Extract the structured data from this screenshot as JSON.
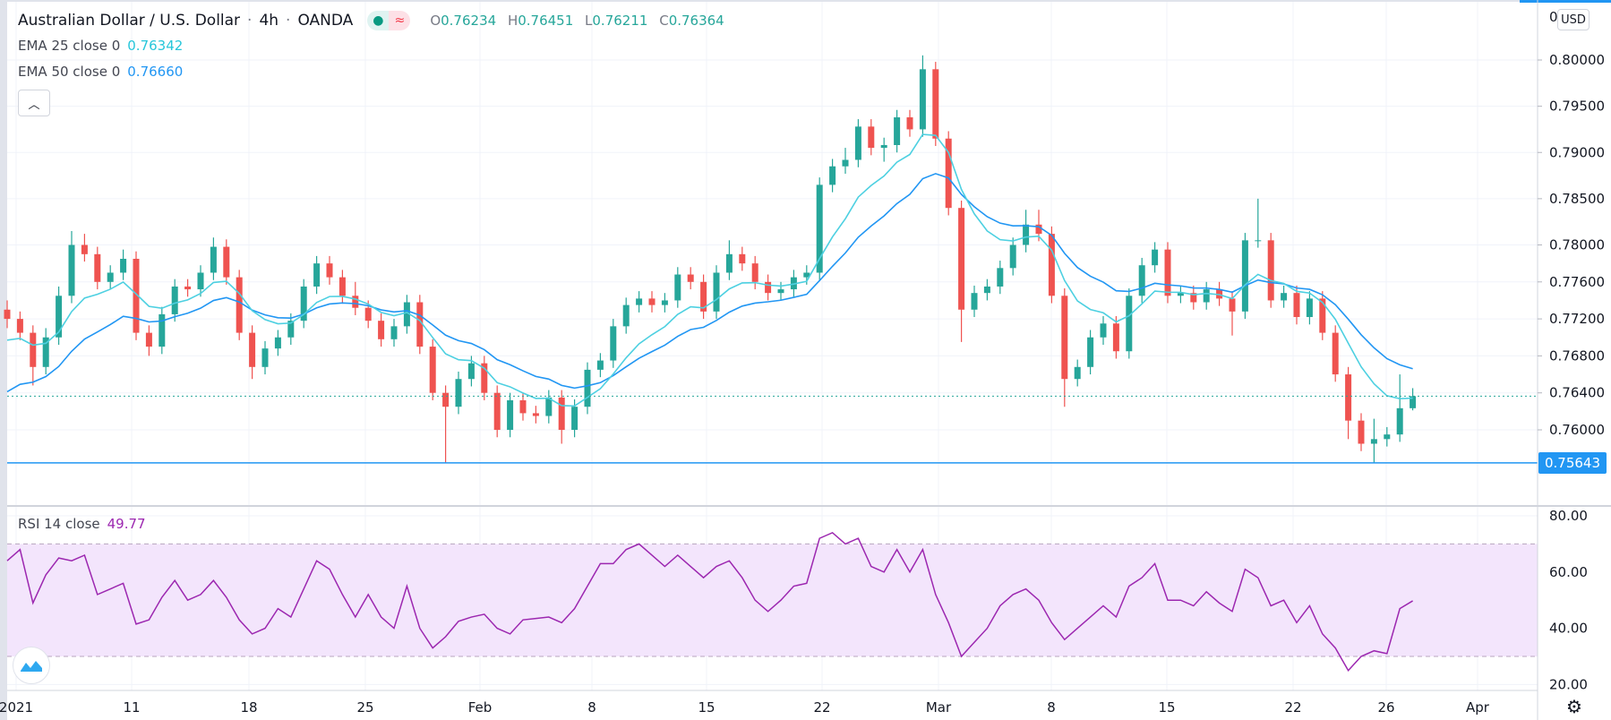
{
  "header": {
    "symbol": "Australian Dollar / U.S. Dollar",
    "interval": "4h",
    "exchange": "OANDA",
    "sep": "·",
    "status_icons": [
      "market-open-dot-icon",
      "delayed-data-icon"
    ],
    "ohlc": {
      "o_label": "O",
      "o": "0.76234",
      "h_label": "H",
      "h": "0.76451",
      "l_label": "L",
      "l": "0.76211",
      "c_label": "C",
      "c": "0.76364"
    }
  },
  "indicators": {
    "ema25": {
      "label": "EMA 25 close 0",
      "value": "0.76342",
      "color": "#4dd0e1"
    },
    "ema50": {
      "label": "EMA 50 close 0",
      "value": "0.76660",
      "color": "#2196f3"
    },
    "rsi": {
      "label": "RSI 14 close",
      "value": "49.77",
      "color": "#9c27b0"
    }
  },
  "price_axis": {
    "currency": "USD",
    "top_partial": "0",
    "horizontal_line_label": "0.75643"
  },
  "colors": {
    "up": "#26a69a",
    "down": "#ef5350",
    "hline": "#2196f3",
    "rsi_band": "#f3e5fc"
  },
  "chart_data": [
    {
      "type": "candlestick",
      "title": "Australian Dollar / U.S. Dollar · 4h · OANDA",
      "ylim": [
        0.7526,
        0.8065
      ],
      "y_ticks": [
        "0.80000",
        "0.79500",
        "0.79000",
        "0.78500",
        "0.78000",
        "0.77600",
        "0.77200",
        "0.76800",
        "0.76400",
        "0.76000"
      ],
      "x_ticks": [
        "2021",
        "11",
        "18",
        "25",
        "Feb",
        "8",
        "15",
        "22",
        "Mar",
        "8",
        "15",
        "22",
        "26",
        "Apr"
      ],
      "horizontal_line": 0.75643,
      "last_price": 0.76364,
      "ohlc": [
        [
          0.773,
          0.774,
          0.771,
          0.772
        ],
        [
          0.772,
          0.7728,
          0.7697,
          0.7705
        ],
        [
          0.7705,
          0.7713,
          0.7648,
          0.7668
        ],
        [
          0.7668,
          0.771,
          0.766,
          0.77
        ],
        [
          0.77,
          0.7755,
          0.7692,
          0.7745
        ],
        [
          0.7745,
          0.7815,
          0.7737,
          0.78
        ],
        [
          0.78,
          0.7812,
          0.7782,
          0.779
        ],
        [
          0.779,
          0.7798,
          0.7752,
          0.776
        ],
        [
          0.776,
          0.7778,
          0.7752,
          0.777
        ],
        [
          0.777,
          0.7795,
          0.7762,
          0.7785
        ],
        [
          0.7785,
          0.7793,
          0.7697,
          0.7705
        ],
        [
          0.7705,
          0.7713,
          0.768,
          0.769
        ],
        [
          0.769,
          0.7733,
          0.7682,
          0.7725
        ],
        [
          0.7725,
          0.7763,
          0.7717,
          0.7755
        ],
        [
          0.7755,
          0.7763,
          0.7744,
          0.7752
        ],
        [
          0.7752,
          0.7778,
          0.7744,
          0.777
        ],
        [
          0.777,
          0.7808,
          0.7762,
          0.7798
        ],
        [
          0.7798,
          0.7806,
          0.7757,
          0.7765
        ],
        [
          0.7765,
          0.7773,
          0.7697,
          0.7705
        ],
        [
          0.7705,
          0.7713,
          0.7655,
          0.7668
        ],
        [
          0.7668,
          0.7696,
          0.766,
          0.7688
        ],
        [
          0.7688,
          0.7708,
          0.768,
          0.77
        ],
        [
          0.77,
          0.7726,
          0.7692,
          0.7718
        ],
        [
          0.7718,
          0.7763,
          0.771,
          0.7755
        ],
        [
          0.7755,
          0.7788,
          0.7747,
          0.778
        ],
        [
          0.778,
          0.7788,
          0.7757,
          0.7765
        ],
        [
          0.7765,
          0.7773,
          0.7737,
          0.7745
        ],
        [
          0.7745,
          0.776,
          0.7724,
          0.7732
        ],
        [
          0.7732,
          0.774,
          0.771,
          0.7718
        ],
        [
          0.7718,
          0.7726,
          0.769,
          0.7698
        ],
        [
          0.7698,
          0.772,
          0.769,
          0.7712
        ],
        [
          0.7712,
          0.7746,
          0.7704,
          0.7738
        ],
        [
          0.7738,
          0.7746,
          0.7682,
          0.769
        ],
        [
          0.769,
          0.7698,
          0.7632,
          0.764
        ],
        [
          0.764,
          0.7648,
          0.75643,
          0.7625
        ],
        [
          0.7625,
          0.7663,
          0.7617,
          0.7655
        ],
        [
          0.7655,
          0.768,
          0.7647,
          0.7672
        ],
        [
          0.7672,
          0.768,
          0.7632,
          0.764
        ],
        [
          0.764,
          0.7648,
          0.7592,
          0.76
        ],
        [
          0.76,
          0.764,
          0.7592,
          0.7632
        ],
        [
          0.7632,
          0.764,
          0.761,
          0.7618
        ],
        [
          0.7618,
          0.7626,
          0.7607,
          0.7615
        ],
        [
          0.7615,
          0.7643,
          0.7607,
          0.7635
        ],
        [
          0.7635,
          0.7643,
          0.7585,
          0.76
        ],
        [
          0.76,
          0.7633,
          0.7592,
          0.7625
        ],
        [
          0.7625,
          0.7673,
          0.7617,
          0.7665
        ],
        [
          0.7665,
          0.7683,
          0.7657,
          0.7675
        ],
        [
          0.7675,
          0.772,
          0.7667,
          0.7712
        ],
        [
          0.7712,
          0.7743,
          0.7704,
          0.7735
        ],
        [
          0.7735,
          0.775,
          0.7727,
          0.7742
        ],
        [
          0.7742,
          0.775,
          0.7727,
          0.7735
        ],
        [
          0.7735,
          0.7748,
          0.7727,
          0.774
        ],
        [
          0.774,
          0.7776,
          0.7732,
          0.7768
        ],
        [
          0.7768,
          0.7776,
          0.7752,
          0.776
        ],
        [
          0.776,
          0.7768,
          0.772,
          0.7728
        ],
        [
          0.7728,
          0.7778,
          0.772,
          0.777
        ],
        [
          0.777,
          0.7805,
          0.7762,
          0.779
        ],
        [
          0.779,
          0.7798,
          0.7772,
          0.778
        ],
        [
          0.778,
          0.7788,
          0.7752,
          0.776
        ],
        [
          0.776,
          0.7768,
          0.774,
          0.7748
        ],
        [
          0.7748,
          0.776,
          0.774,
          0.7752
        ],
        [
          0.7752,
          0.7773,
          0.7744,
          0.7765
        ],
        [
          0.7765,
          0.7778,
          0.7757,
          0.777
        ],
        [
          0.777,
          0.7873,
          0.7762,
          0.7865
        ],
        [
          0.7865,
          0.7893,
          0.7857,
          0.7885
        ],
        [
          0.7885,
          0.7905,
          0.7877,
          0.7892
        ],
        [
          0.7892,
          0.7936,
          0.7884,
          0.7928
        ],
        [
          0.7928,
          0.7936,
          0.7897,
          0.7905
        ],
        [
          0.7905,
          0.7916,
          0.789,
          0.7908
        ],
        [
          0.7908,
          0.7946,
          0.79,
          0.7938
        ],
        [
          0.7938,
          0.7946,
          0.7917,
          0.7925
        ],
        [
          0.7925,
          0.8005,
          0.7917,
          0.799
        ],
        [
          0.799,
          0.7998,
          0.7907,
          0.7915
        ],
        [
          0.7915,
          0.7923,
          0.7832,
          0.784
        ],
        [
          0.784,
          0.7848,
          0.7695,
          0.773
        ],
        [
          0.773,
          0.7756,
          0.7722,
          0.7748
        ],
        [
          0.7748,
          0.7763,
          0.774,
          0.7755
        ],
        [
          0.7755,
          0.7783,
          0.7747,
          0.7775
        ],
        [
          0.7775,
          0.7808,
          0.7767,
          0.78
        ],
        [
          0.78,
          0.7838,
          0.7792,
          0.7822
        ],
        [
          0.7822,
          0.7838,
          0.7804,
          0.7812
        ],
        [
          0.7812,
          0.782,
          0.7737,
          0.7745
        ],
        [
          0.7745,
          0.7753,
          0.7625,
          0.7655
        ],
        [
          0.7655,
          0.7676,
          0.7647,
          0.7668
        ],
        [
          0.7668,
          0.7708,
          0.766,
          0.77
        ],
        [
          0.77,
          0.7723,
          0.7692,
          0.7715
        ],
        [
          0.7715,
          0.7723,
          0.7677,
          0.7685
        ],
        [
          0.7685,
          0.7753,
          0.7677,
          0.7745
        ],
        [
          0.7745,
          0.7786,
          0.7737,
          0.7778
        ],
        [
          0.7778,
          0.7803,
          0.777,
          0.7795
        ],
        [
          0.7795,
          0.7803,
          0.7737,
          0.7745
        ],
        [
          0.7745,
          0.7756,
          0.7737,
          0.7748
        ],
        [
          0.7748,
          0.7756,
          0.773,
          0.7738
        ],
        [
          0.7738,
          0.776,
          0.773,
          0.7752
        ],
        [
          0.7752,
          0.776,
          0.7734,
          0.7742
        ],
        [
          0.7742,
          0.775,
          0.7702,
          0.7728
        ],
        [
          0.7728,
          0.7813,
          0.772,
          0.7805
        ],
        [
          0.7805,
          0.785,
          0.7797,
          0.7805
        ],
        [
          0.7805,
          0.7813,
          0.7732,
          0.774
        ],
        [
          0.774,
          0.7756,
          0.7732,
          0.7748
        ],
        [
          0.7748,
          0.7756,
          0.7714,
          0.7722
        ],
        [
          0.7722,
          0.775,
          0.7714,
          0.7742
        ],
        [
          0.7742,
          0.775,
          0.7697,
          0.7705
        ],
        [
          0.7705,
          0.7713,
          0.7652,
          0.766
        ],
        [
          0.766,
          0.7668,
          0.759,
          0.761
        ],
        [
          0.761,
          0.7618,
          0.7577,
          0.7585
        ],
        [
          0.7585,
          0.7612,
          0.75643,
          0.759
        ],
        [
          0.759,
          0.7603,
          0.7582,
          0.7595
        ],
        [
          0.7595,
          0.766,
          0.7587,
          0.76234
        ],
        [
          0.76234,
          0.76451,
          0.76211,
          0.76364
        ]
      ]
    },
    {
      "type": "line",
      "title": "RSI 14 close",
      "ylim": [
        17,
        83
      ],
      "y_ticks": [
        "80.00",
        "60.00",
        "40.00",
        "20.00"
      ],
      "bands": [
        30,
        70
      ],
      "values": [
        64,
        68,
        49,
        59,
        65,
        64,
        66,
        52,
        54,
        56,
        41.5,
        43,
        51,
        57,
        50,
        52,
        57,
        51,
        43,
        38,
        40,
        47,
        44,
        54,
        64,
        61,
        52,
        44,
        52,
        44,
        40,
        55,
        40,
        33,
        37,
        42.5,
        44,
        45,
        40,
        38,
        43,
        43.5,
        44,
        42,
        47,
        55,
        63,
        63,
        68,
        70,
        66,
        62,
        66,
        62,
        58,
        62,
        64,
        58,
        50,
        46,
        50,
        55,
        56,
        72,
        74,
        70,
        72,
        62,
        60,
        68,
        60,
        68,
        52,
        42,
        30,
        35,
        40,
        48,
        52,
        54,
        50,
        42,
        36,
        40,
        44,
        48,
        44,
        55,
        58,
        63,
        50,
        50,
        48,
        53,
        49,
        46,
        61,
        58,
        48,
        50,
        42,
        48,
        38,
        33,
        25,
        30,
        32,
        31,
        47,
        49.77
      ]
    }
  ]
}
